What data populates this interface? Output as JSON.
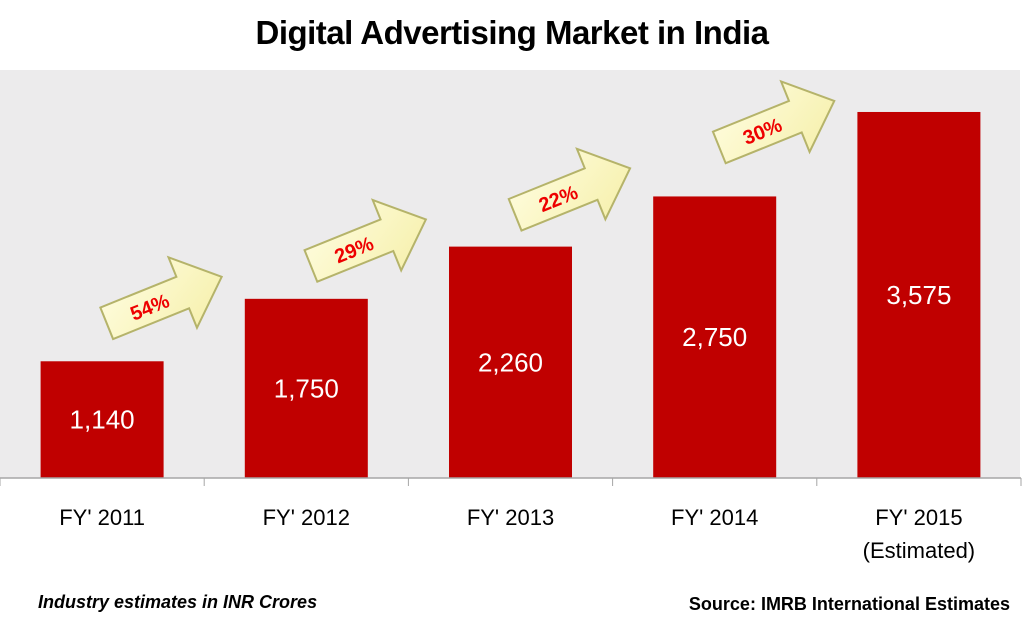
{
  "chart_data": {
    "type": "bar",
    "title": "Digital Advertising Market in India",
    "categories": [
      "FY' 2011",
      "FY' 2012",
      "FY' 2013",
      "FY' 2014",
      "FY' 2015"
    ],
    "category_sublabels": [
      "",
      "",
      "",
      "",
      "(Estimated)"
    ],
    "values": [
      1140,
      1750,
      2260,
      2750,
      3575
    ],
    "value_labels": [
      "1,140",
      "1,750",
      "2,260",
      "2,750",
      "3,575"
    ],
    "growth_labels": [
      "54%",
      "29%",
      "22%",
      "30%"
    ],
    "xlabel": "",
    "ylabel": "",
    "ylim": [
      0,
      3985
    ],
    "grid": false,
    "legend": "none",
    "bar_color": "#c00000",
    "growth_text_color": "#ee0000",
    "arrow_fill": "#fcf8c4",
    "arrow_stroke": "#b5b36a"
  },
  "footer": {
    "note": "Industry estimates in INR Crores",
    "source": "Source: IMRB International Estimates"
  }
}
